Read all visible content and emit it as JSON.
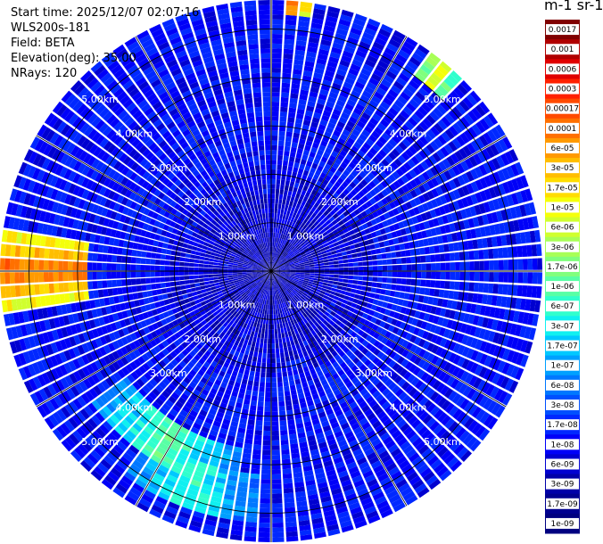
{
  "header": {
    "start_time": "Start time: 2025/12/07 02:07:16",
    "device": "WLS200s-181",
    "field": "Field: BETA",
    "elevation": "Elevation(deg): 35.00",
    "nrays": "NRays: 120",
    "unit": "m-1 sr-1"
  },
  "colors": {
    "background": "#ffffff",
    "ring_color": "#000000",
    "ray_separator": "#ffffff"
  },
  "chart_data": {
    "type": "heatmap",
    "projection": "polar-ppi",
    "n_rays": 120,
    "elevation_deg": 35.0,
    "range_km": [
      0,
      5.6
    ],
    "range_rings_km": [
      1.0,
      2.0,
      3.0,
      4.0,
      5.0
    ],
    "ring_labels": [
      "1.00km",
      "2.00km",
      "3.00km",
      "4.00km",
      "5.00km"
    ],
    "azimuth_lines_deg": [
      0,
      30,
      60,
      90,
      120,
      150,
      180,
      210,
      240,
      270,
      300,
      330
    ],
    "colorbar": {
      "scale": "log",
      "ticks": [
        "0.0017",
        "0.001",
        "0.0006",
        "0.0003",
        "0.00017",
        "0.0001",
        "6e-05",
        "3e-05",
        "1.7e-05",
        "1e-05",
        "6e-06",
        "3e-06",
        "1.7e-06",
        "1e-06",
        "6e-07",
        "3e-07",
        "1.7e-07",
        "1e-07",
        "6e-08",
        "3e-08",
        "1.7e-08",
        "1e-08",
        "6e-09",
        "3e-09",
        "1.7e-09",
        "1e-09"
      ],
      "colors": [
        "#800000",
        "#b00000",
        "#e00000",
        "#ff2000",
        "#ff4a00",
        "#ff7000",
        "#ff9a00",
        "#ffbe00",
        "#ffdd00",
        "#f4ff0a",
        "#d0ff2e",
        "#a8ff56",
        "#80ff7d",
        "#58ffa5",
        "#30ffcd",
        "#10f0f0",
        "#00c8ff",
        "#00a0ff",
        "#0078ff",
        "#0050ff",
        "#0028ff",
        "#0000f8",
        "#0000d0",
        "#0000a8",
        "#000090",
        "#000080"
      ]
    },
    "features": [
      {
        "az_deg": 270,
        "range_km": [
          3.8,
          5.6
        ],
        "value": 0.0001,
        "spread_deg": 18
      },
      {
        "az_deg": 212,
        "range_km": [
          3.7,
          4.6
        ],
        "value": 1e-06,
        "spread_deg": 45
      },
      {
        "az_deg": 200,
        "range_km": [
          4.2,
          5.2
        ],
        "value": 6e-07,
        "spread_deg": 35
      },
      {
        "az_deg": 40,
        "range_km": [
          5.0,
          5.6
        ],
        "value": 1e-05,
        "spread_deg": 8
      },
      {
        "az_deg": 5,
        "range_km": [
          5.3,
          5.6
        ],
        "value": 0.0001,
        "spread_deg": 6
      }
    ]
  }
}
